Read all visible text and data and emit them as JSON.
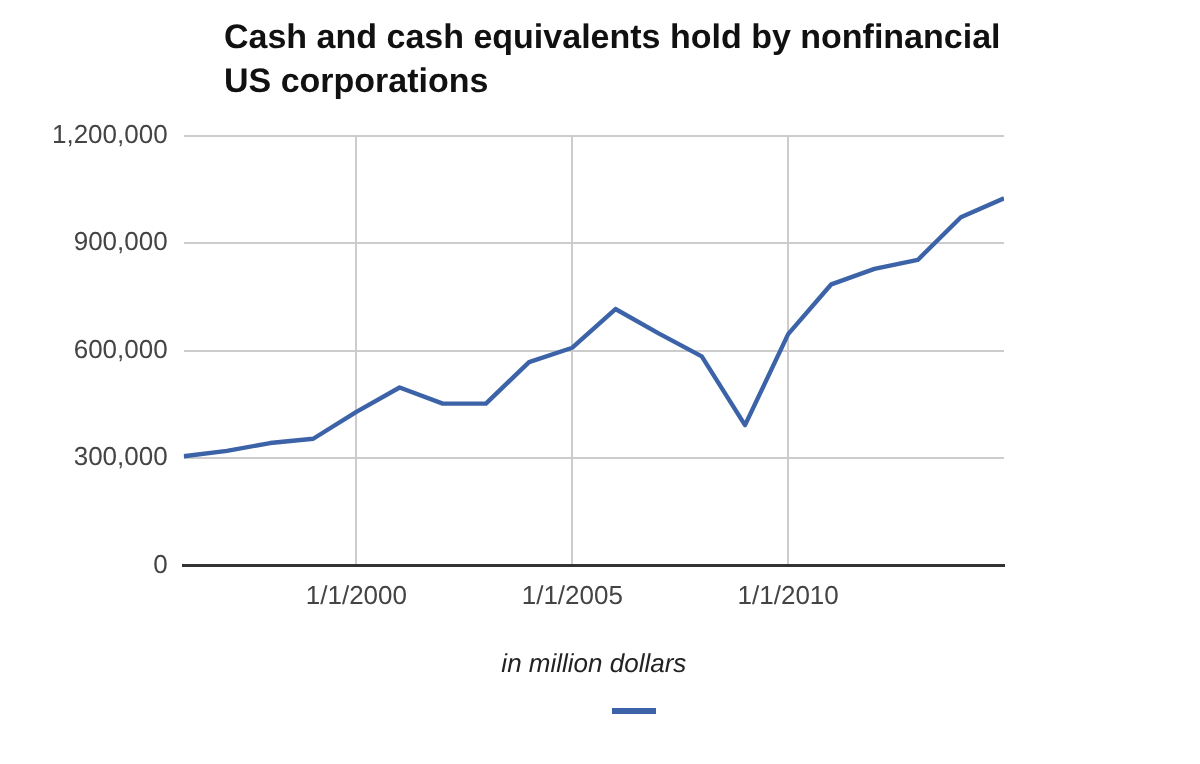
{
  "chart_data": {
    "type": "line",
    "title": "Cash and cash equivalents hold by nonfinancial US corporations",
    "xlabel": "in million dollars",
    "x": [
      "1996-01-01",
      "1997-01-01",
      "1998-01-01",
      "1999-01-01",
      "2000-01-01",
      "2001-01-01",
      "2002-01-01",
      "2003-01-01",
      "2004-01-01",
      "2005-01-01",
      "2006-01-01",
      "2007-01-01",
      "2008-01-01",
      "2009-01-01",
      "2010-01-01",
      "2011-01-01",
      "2012-01-01",
      "2013-01-01",
      "2014-01-01",
      "2015-01-01"
    ],
    "series": [
      {
        "color": "#3c63a8",
        "values": [
          305000,
          320000,
          342000,
          354000,
          429000,
          497000,
          452000,
          452000,
          568000,
          608000,
          716000,
          648000,
          584000,
          392000,
          646000,
          785000,
          828000,
          853000,
          972000,
          1025000
        ]
      }
    ],
    "xlim": [
      "1996-01-01",
      "2015-01-01"
    ],
    "xticks": [
      {
        "value": "2000-01-01",
        "label": "1/1/2000"
      },
      {
        "value": "2005-01-01",
        "label": "1/1/2005"
      },
      {
        "value": "2010-01-01",
        "label": "1/1/2010"
      }
    ],
    "ylim": [
      0,
      1200000
    ],
    "yticks": [
      {
        "value": 0,
        "label": "0"
      },
      {
        "value": 300000,
        "label": "300,000"
      },
      {
        "value": 600000,
        "label": "600,000"
      },
      {
        "value": 900000,
        "label": "900,000"
      },
      {
        "value": 1200000,
        "label": "1,200,000"
      }
    ],
    "grid": true,
    "marker": "none",
    "line_style": "solid"
  }
}
